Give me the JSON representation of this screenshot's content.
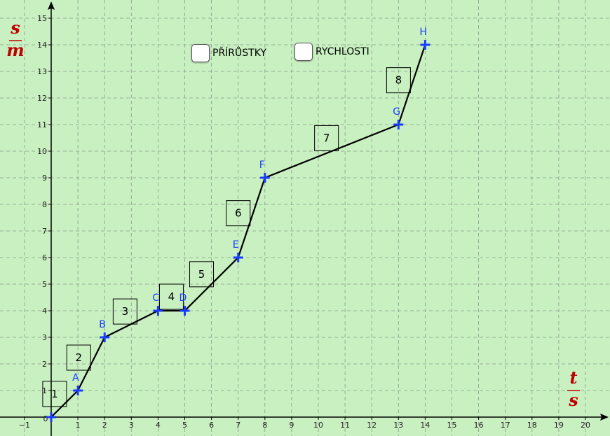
{
  "chart_data": {
    "type": "line",
    "x_axis": {
      "range": [
        -1,
        20
      ],
      "ticks": [
        -1,
        1,
        2,
        3,
        4,
        5,
        6,
        7,
        8,
        9,
        10,
        11,
        12,
        13,
        14,
        15,
        16,
        17,
        18,
        19,
        20
      ],
      "origin_label": "0",
      "label_num": "t",
      "label_den": "s"
    },
    "y_axis": {
      "range": [
        0,
        15
      ],
      "ticks": [
        1,
        2,
        3,
        4,
        5,
        6,
        7,
        8,
        9,
        10,
        11,
        12,
        13,
        14,
        15
      ],
      "label_num": "s",
      "label_den": "m"
    },
    "grid": true,
    "points": [
      {
        "x": 0,
        "y": 0,
        "label": ""
      },
      {
        "x": 1,
        "y": 1,
        "label": "A"
      },
      {
        "x": 2,
        "y": 3,
        "label": "B"
      },
      {
        "x": 4,
        "y": 4,
        "label": "C"
      },
      {
        "x": 5,
        "y": 4,
        "label": "D"
      },
      {
        "x": 7,
        "y": 6,
        "label": "E"
      },
      {
        "x": 8,
        "y": 9,
        "label": "F"
      },
      {
        "x": 13,
        "y": 11,
        "label": "G"
      },
      {
        "x": 14,
        "y": 14,
        "label": "H"
      }
    ],
    "segment_labels": [
      "1",
      "2",
      "3",
      "4",
      "5",
      "6",
      "7",
      "8"
    ],
    "colors": {
      "background": "#c8f0c0",
      "line": "#000000",
      "points": "#1a3cff",
      "axis_label": "#c00000",
      "grid": "#8a9a8a"
    }
  },
  "controls": {
    "increments_label": "PŘÍRŮSTKY",
    "speeds_label": "RYCHLOSTI"
  }
}
